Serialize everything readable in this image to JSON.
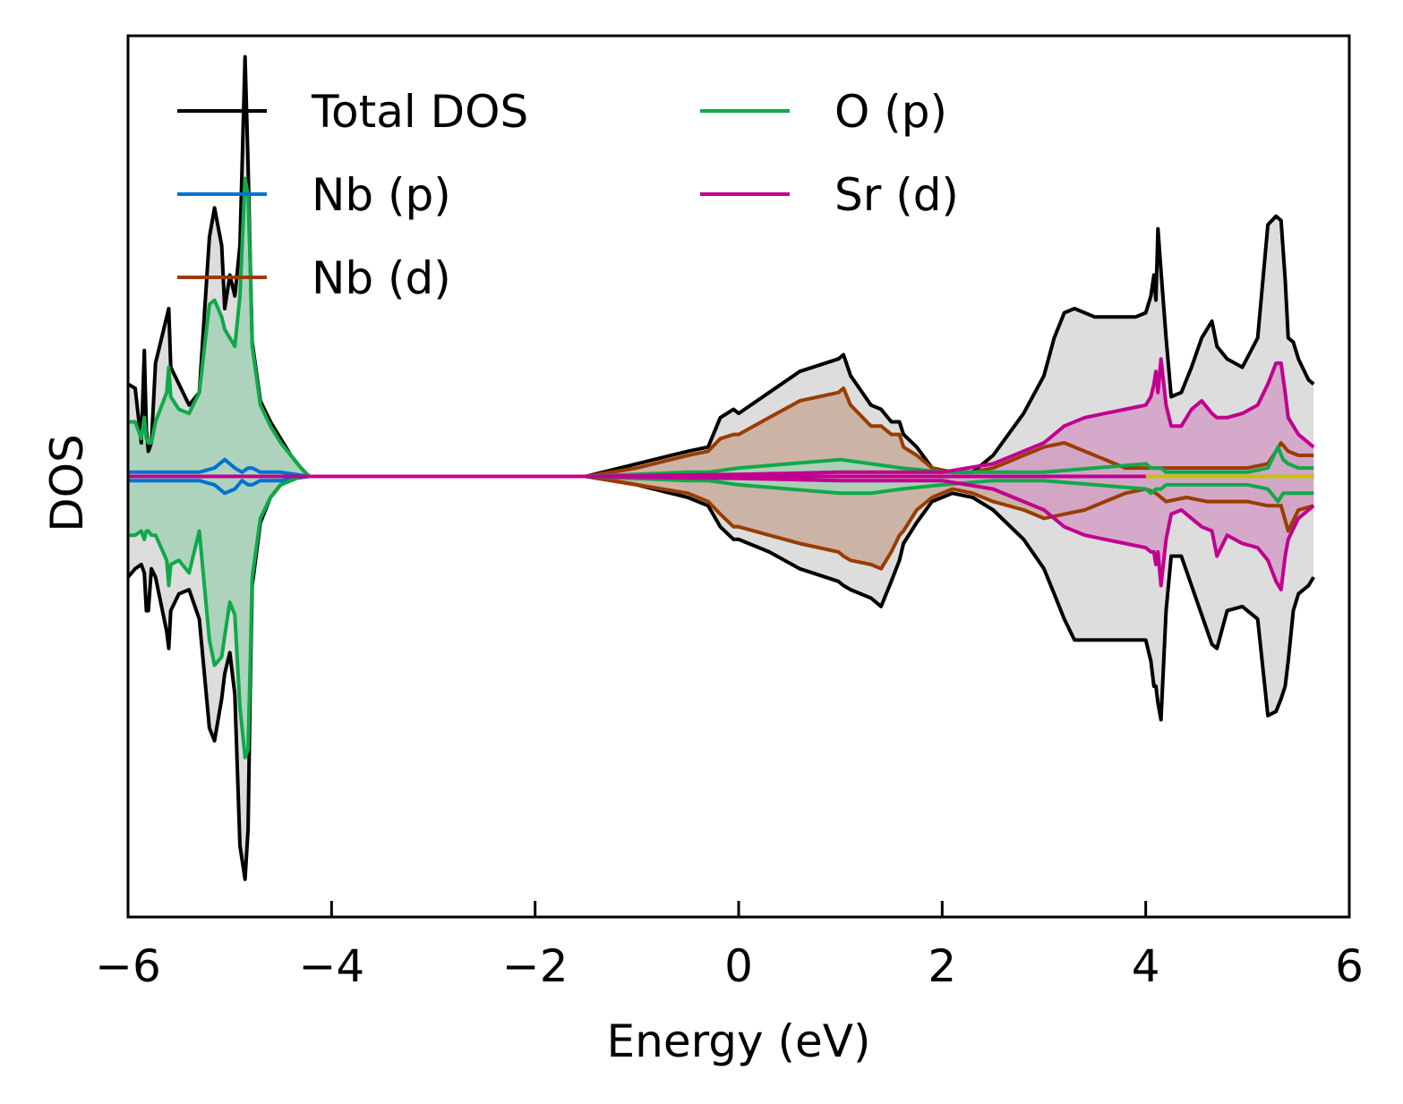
{
  "chart_data": {
    "type": "area",
    "xlabel": "Energy (eV)",
    "ylabel": "DOS",
    "xlim": [
      -6,
      6
    ],
    "ylim": [
      -1.05,
      1.05
    ],
    "xticks": [
      "−6",
      "−4",
      "−2",
      "0",
      "2",
      "4",
      "6"
    ],
    "xtick_values": [
      -6,
      -4,
      -2,
      0,
      2,
      4,
      6
    ],
    "grid": false,
    "legend": {
      "position": "top-left",
      "columns": 2
    },
    "spin_down_mirrored": true,
    "series": [
      {
        "name": "Total DOS",
        "color": "#000000",
        "fill": "#d9d9d9",
        "x": [
          -6.0,
          -5.93,
          -5.87,
          -5.84,
          -5.82,
          -5.8,
          -5.77,
          -5.73,
          -5.62,
          -5.6,
          -5.58,
          -5.5,
          -5.4,
          -5.3,
          -5.2,
          -5.15,
          -5.08,
          -5.05,
          -5.0,
          -4.95,
          -4.9,
          -4.85,
          -4.82,
          -4.8,
          -4.78,
          -4.7,
          -4.6,
          -4.5,
          -4.4,
          -4.3,
          -4.22,
          -1.5,
          -1.0,
          -0.5,
          -0.3,
          -0.18,
          -0.05,
          0.0,
          0.3,
          0.6,
          0.98,
          1.03,
          1.1,
          1.3,
          1.4,
          1.5,
          1.58,
          1.62,
          1.75,
          1.9,
          2.1,
          2.3,
          2.5,
          2.8,
          3.0,
          3.1,
          3.2,
          3.3,
          3.5,
          3.7,
          3.9,
          4.0,
          4.05,
          4.08,
          4.1,
          4.12,
          4.15,
          4.2,
          4.25,
          4.35,
          4.45,
          4.55,
          4.65,
          4.7,
          4.8,
          4.95,
          5.1,
          5.2,
          5.28,
          5.33,
          5.37,
          5.4,
          5.45,
          5.5,
          5.6,
          5.65
        ],
        "up": [
          0.22,
          0.21,
          0.08,
          0.3,
          0.11,
          0.06,
          0.08,
          0.27,
          0.38,
          0.4,
          0.26,
          0.22,
          0.17,
          0.2,
          0.57,
          0.64,
          0.55,
          0.4,
          0.48,
          0.43,
          0.55,
          1.0,
          0.74,
          0.52,
          0.32,
          0.18,
          0.13,
          0.09,
          0.05,
          0.02,
          0.0,
          0.0,
          0.03,
          0.06,
          0.07,
          0.14,
          0.16,
          0.15,
          0.2,
          0.25,
          0.28,
          0.29,
          0.24,
          0.17,
          0.16,
          0.13,
          0.13,
          0.1,
          0.07,
          0.02,
          0.01,
          0.01,
          0.05,
          0.15,
          0.24,
          0.33,
          0.39,
          0.4,
          0.38,
          0.38,
          0.38,
          0.39,
          0.43,
          0.48,
          0.42,
          0.59,
          0.49,
          0.33,
          0.19,
          0.2,
          0.26,
          0.33,
          0.37,
          0.31,
          0.28,
          0.26,
          0.33,
          0.6,
          0.62,
          0.61,
          0.47,
          0.33,
          0.32,
          0.28,
          0.23,
          0.22
        ],
        "down": [
          0.24,
          0.22,
          0.21,
          0.23,
          0.32,
          0.32,
          0.22,
          0.24,
          0.37,
          0.41,
          0.32,
          0.28,
          0.27,
          0.34,
          0.6,
          0.63,
          0.53,
          0.47,
          0.42,
          0.52,
          0.88,
          0.96,
          0.84,
          0.51,
          0.26,
          0.11,
          0.05,
          0.02,
          0.01,
          0.0,
          0.0,
          0.0,
          0.02,
          0.05,
          0.07,
          0.12,
          0.15,
          0.15,
          0.18,
          0.22,
          0.25,
          0.26,
          0.27,
          0.29,
          0.31,
          0.25,
          0.2,
          0.16,
          0.11,
          0.06,
          0.04,
          0.05,
          0.08,
          0.15,
          0.22,
          0.28,
          0.34,
          0.39,
          0.39,
          0.39,
          0.39,
          0.39,
          0.44,
          0.5,
          0.5,
          0.54,
          0.58,
          0.32,
          0.19,
          0.19,
          0.26,
          0.33,
          0.4,
          0.41,
          0.32,
          0.31,
          0.34,
          0.57,
          0.56,
          0.53,
          0.5,
          0.44,
          0.32,
          0.28,
          0.26,
          0.24
        ]
      },
      {
        "name": "Nb (p)",
        "color": "#0072d0",
        "fill": "none",
        "x": [
          -6.0,
          -5.5,
          -5.3,
          -5.15,
          -5.05,
          -4.95,
          -4.88,
          -4.82,
          -4.78,
          -4.7,
          -4.5,
          -4.22,
          5.65
        ],
        "up": [
          0.01,
          0.01,
          0.01,
          0.02,
          0.04,
          0.02,
          0.01,
          0.02,
          0.02,
          0.01,
          0.01,
          0.0,
          0.0
        ],
        "down": [
          0.01,
          0.01,
          0.01,
          0.02,
          0.04,
          0.03,
          0.01,
          0.02,
          0.02,
          0.01,
          0.01,
          0.0,
          0.0
        ]
      },
      {
        "name": "Nb (d)",
        "color": "#9a3c00",
        "fill": "#c9af9f",
        "x": [
          -6.0,
          -4.22,
          -1.5,
          -1.0,
          -0.5,
          -0.3,
          -0.18,
          -0.05,
          0.0,
          0.3,
          0.6,
          0.98,
          1.03,
          1.1,
          1.3,
          1.4,
          1.5,
          1.58,
          1.62,
          1.75,
          1.9,
          2.1,
          2.3,
          2.5,
          2.8,
          3.0,
          3.2,
          3.4,
          3.6,
          3.8,
          4.0,
          4.1,
          4.2,
          4.4,
          4.6,
          4.8,
          5.0,
          5.2,
          5.28,
          5.33,
          5.4,
          5.5,
          5.65
        ],
        "up": [
          0.0,
          0.0,
          0.0,
          0.02,
          0.05,
          0.06,
          0.09,
          0.1,
          0.1,
          0.14,
          0.18,
          0.2,
          0.21,
          0.17,
          0.12,
          0.12,
          0.1,
          0.1,
          0.07,
          0.05,
          0.02,
          0.01,
          0.01,
          0.02,
          0.05,
          0.07,
          0.08,
          0.06,
          0.04,
          0.02,
          0.02,
          0.02,
          0.02,
          0.02,
          0.02,
          0.02,
          0.02,
          0.03,
          0.06,
          0.08,
          0.06,
          0.05,
          0.05
        ],
        "down": [
          0.0,
          0.0,
          0.0,
          0.02,
          0.04,
          0.06,
          0.09,
          0.12,
          0.12,
          0.14,
          0.16,
          0.18,
          0.19,
          0.2,
          0.21,
          0.22,
          0.18,
          0.14,
          0.13,
          0.08,
          0.05,
          0.03,
          0.04,
          0.06,
          0.08,
          0.1,
          0.09,
          0.08,
          0.06,
          0.04,
          0.03,
          0.04,
          0.06,
          0.05,
          0.06,
          0.06,
          0.06,
          0.07,
          0.07,
          0.07,
          0.13,
          0.08,
          0.07
        ]
      },
      {
        "name": "O (p)",
        "color": "#10a94a",
        "fill": "#a8d1b8",
        "x": [
          -6.0,
          -5.93,
          -5.87,
          -5.84,
          -5.82,
          -5.8,
          -5.77,
          -5.73,
          -5.62,
          -5.6,
          -5.58,
          -5.5,
          -5.4,
          -5.3,
          -5.2,
          -5.15,
          -5.08,
          -5.05,
          -5.0,
          -4.95,
          -4.9,
          -4.85,
          -4.82,
          -4.8,
          -4.78,
          -4.7,
          -4.6,
          -4.5,
          -4.4,
          -4.3,
          -4.22,
          -1.5,
          -0.5,
          -0.3,
          0.0,
          0.5,
          1.0,
          1.3,
          1.6,
          2.0,
          2.5,
          3.0,
          3.5,
          4.0,
          4.05,
          4.1,
          4.15,
          4.2,
          4.5,
          4.8,
          5.0,
          5.2,
          5.3,
          5.35,
          5.4,
          5.5,
          5.65
        ],
        "up": [
          0.13,
          0.13,
          0.09,
          0.14,
          0.09,
          0.08,
          0.08,
          0.13,
          0.2,
          0.26,
          0.19,
          0.16,
          0.15,
          0.2,
          0.41,
          0.42,
          0.38,
          0.35,
          0.33,
          0.31,
          0.43,
          0.71,
          0.67,
          0.51,
          0.31,
          0.17,
          0.12,
          0.08,
          0.05,
          0.02,
          0.0,
          0.0,
          0.01,
          0.01,
          0.02,
          0.03,
          0.04,
          0.03,
          0.02,
          0.01,
          0.01,
          0.01,
          0.02,
          0.03,
          0.02,
          0.02,
          0.02,
          0.01,
          0.01,
          0.01,
          0.01,
          0.02,
          0.07,
          0.04,
          0.03,
          0.02,
          0.02
        ],
        "down": [
          0.14,
          0.14,
          0.13,
          0.15,
          0.13,
          0.13,
          0.14,
          0.14,
          0.2,
          0.26,
          0.21,
          0.2,
          0.23,
          0.13,
          0.39,
          0.45,
          0.43,
          0.38,
          0.3,
          0.33,
          0.55,
          0.67,
          0.65,
          0.45,
          0.24,
          0.1,
          0.05,
          0.02,
          0.01,
          0.0,
          0.0,
          0.0,
          0.01,
          0.01,
          0.02,
          0.03,
          0.04,
          0.04,
          0.03,
          0.02,
          0.01,
          0.01,
          0.02,
          0.03,
          0.04,
          0.03,
          0.03,
          0.02,
          0.02,
          0.02,
          0.02,
          0.03,
          0.06,
          0.04,
          0.04,
          0.04,
          0.04
        ]
      },
      {
        "name": "Sr (d)",
        "color": "#c0008f",
        "fill": "#d4a3c8",
        "x": [
          -6.0,
          -4.22,
          -1.5,
          0.0,
          1.0,
          2.0,
          2.5,
          3.0,
          3.2,
          3.4,
          3.6,
          3.8,
          4.0,
          4.05,
          4.08,
          4.1,
          4.12,
          4.15,
          4.2,
          4.25,
          4.35,
          4.45,
          4.55,
          4.65,
          4.7,
          4.8,
          4.95,
          5.1,
          5.2,
          5.28,
          5.33,
          5.37,
          5.4,
          5.5,
          5.6,
          5.65
        ],
        "up": [
          0.0,
          0.0,
          0.0,
          0.005,
          0.01,
          0.01,
          0.03,
          0.08,
          0.12,
          0.14,
          0.15,
          0.16,
          0.17,
          0.19,
          0.22,
          0.25,
          0.2,
          0.28,
          0.17,
          0.12,
          0.12,
          0.16,
          0.18,
          0.15,
          0.14,
          0.14,
          0.15,
          0.17,
          0.22,
          0.27,
          0.27,
          0.2,
          0.14,
          0.1,
          0.08,
          0.07
        ],
        "down": [
          0.0,
          0.0,
          0.0,
          0.005,
          0.01,
          0.01,
          0.03,
          0.08,
          0.12,
          0.14,
          0.15,
          0.16,
          0.17,
          0.18,
          0.18,
          0.21,
          0.18,
          0.26,
          0.15,
          0.09,
          0.08,
          0.1,
          0.12,
          0.13,
          0.19,
          0.14,
          0.16,
          0.17,
          0.2,
          0.25,
          0.27,
          0.19,
          0.15,
          0.1,
          0.08,
          0.07
        ]
      }
    ]
  }
}
